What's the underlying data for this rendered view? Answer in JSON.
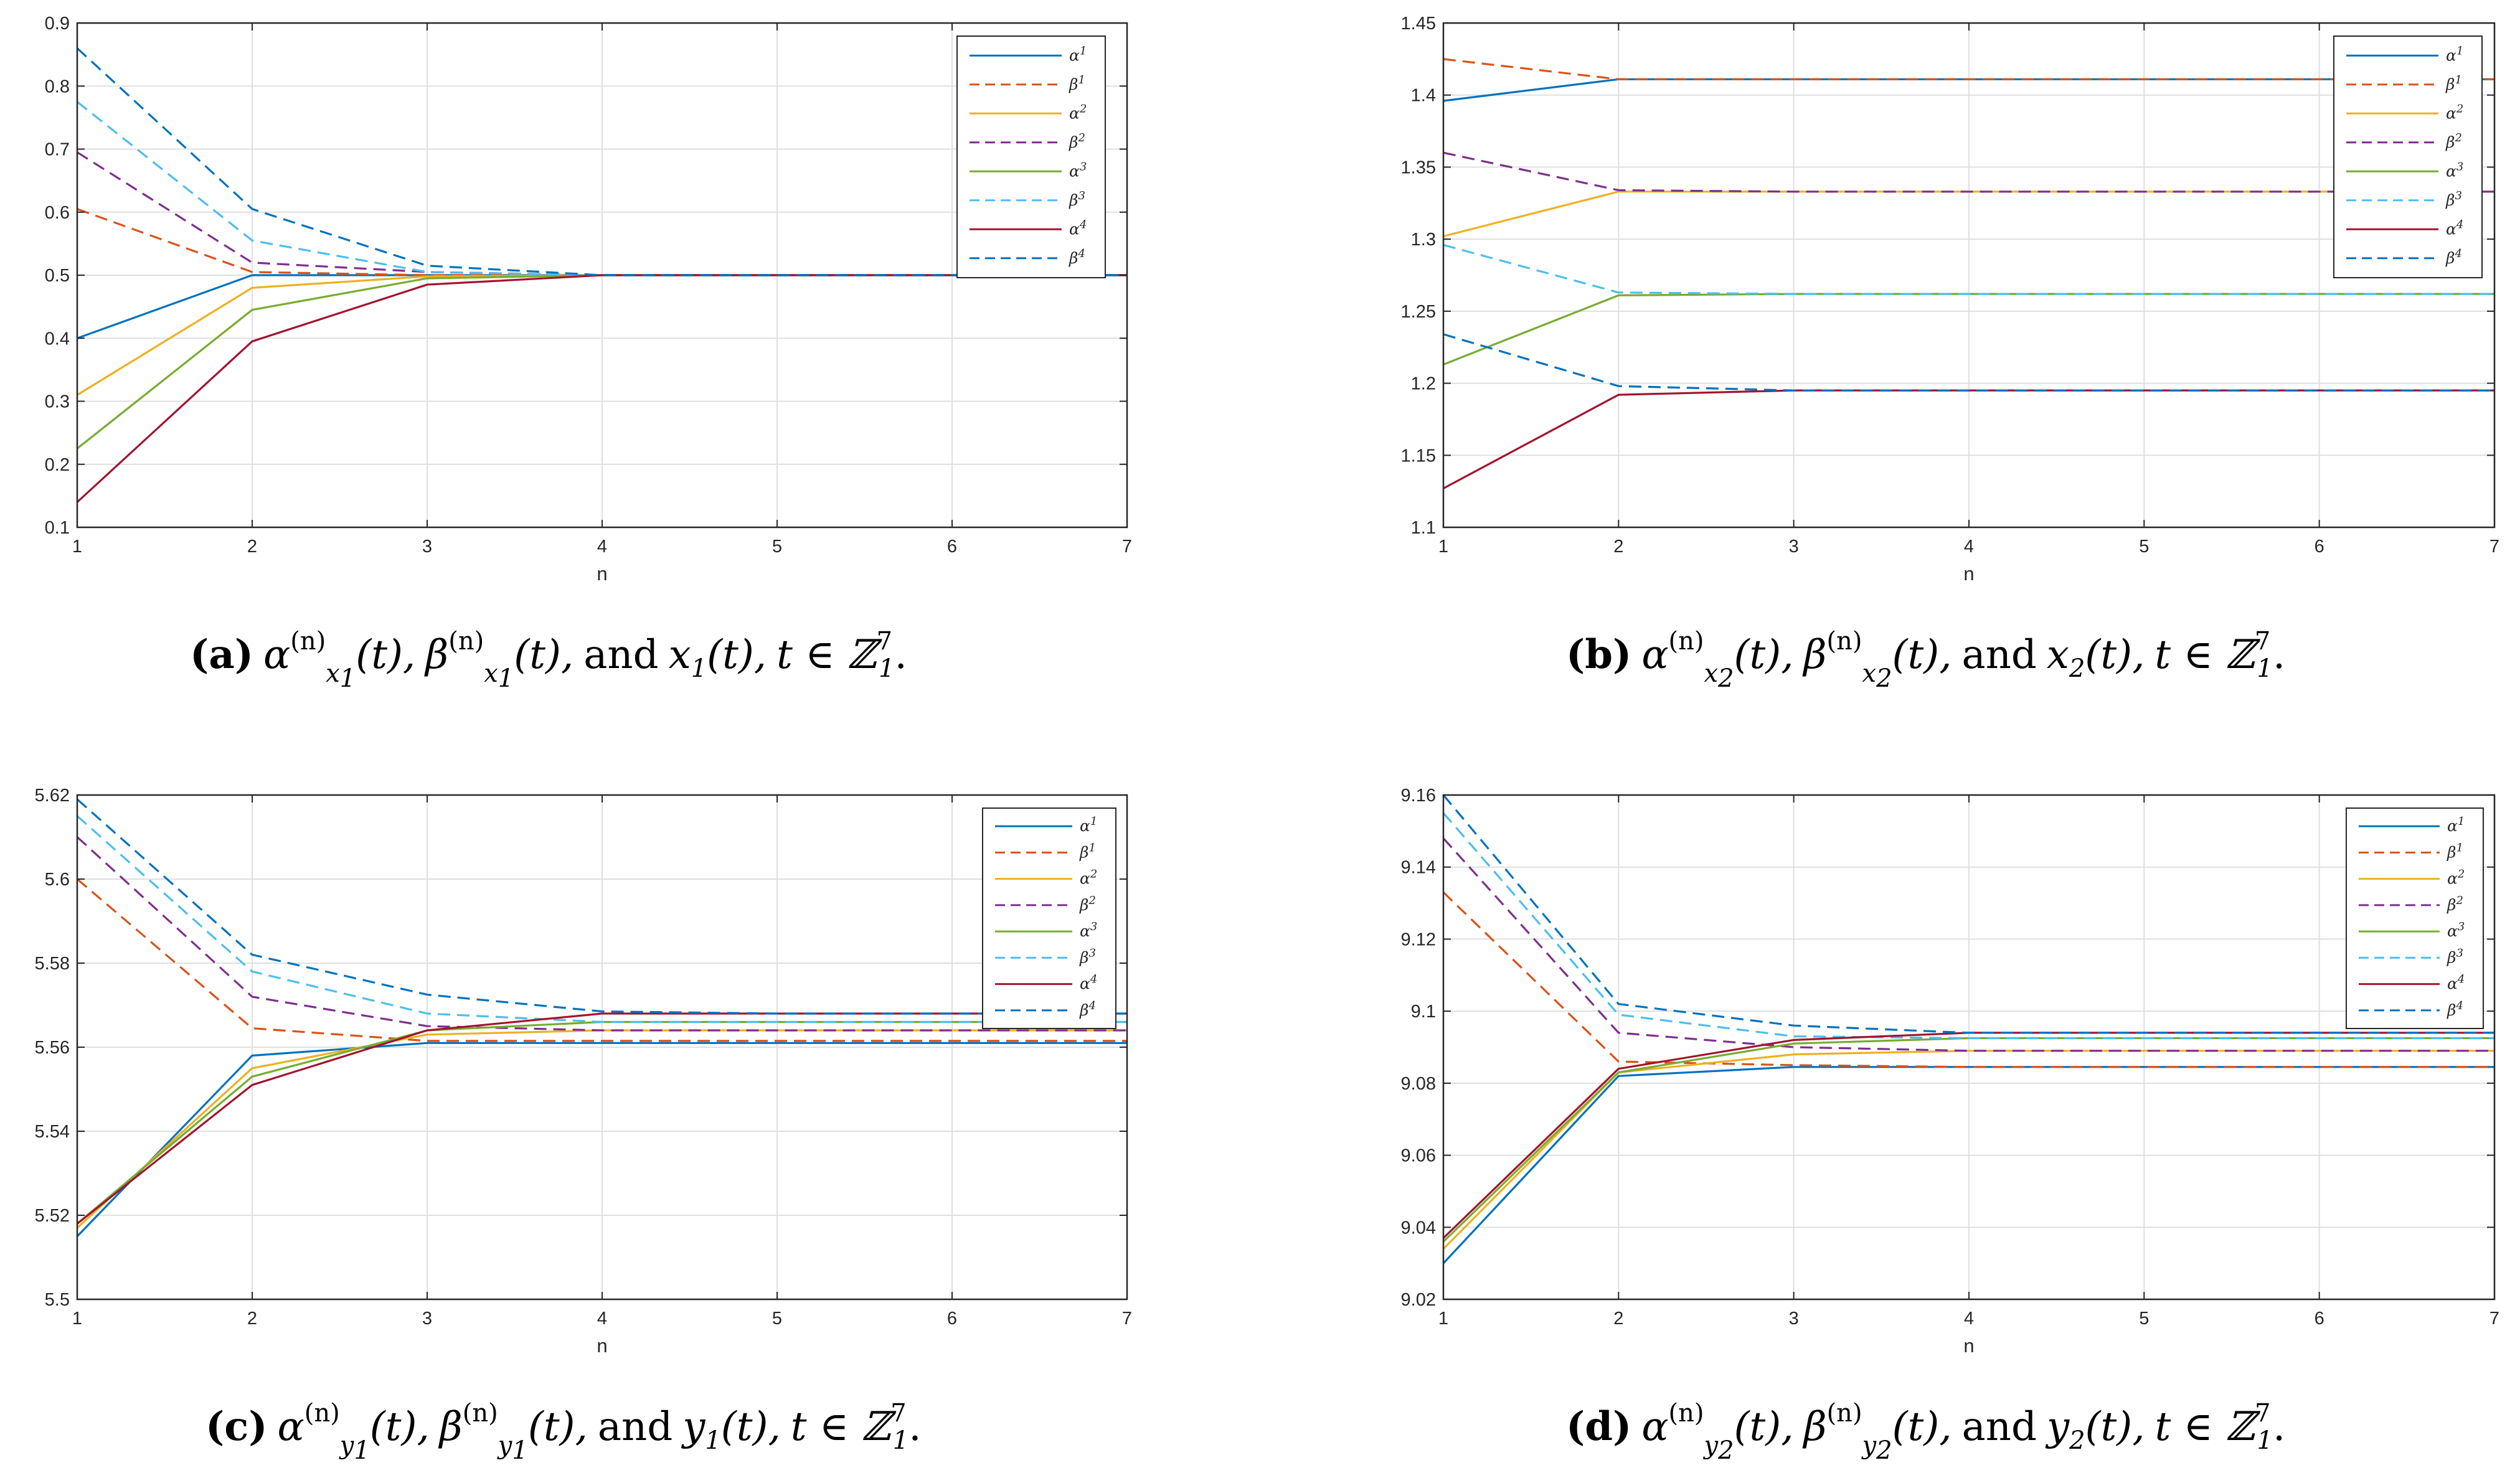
{
  "series_style": [
    {
      "name": "α1",
      "color": "#0072BD",
      "dashed": false
    },
    {
      "name": "β1",
      "color": "#D95319",
      "dashed": true
    },
    {
      "name": "α2",
      "color": "#EDB120",
      "dashed": false
    },
    {
      "name": "β2",
      "color": "#7E2F8E",
      "dashed": true
    },
    {
      "name": "α3",
      "color": "#77AC30",
      "dashed": false
    },
    {
      "name": "β3",
      "color": "#4DBEEE",
      "dashed": true
    },
    {
      "name": "α4",
      "color": "#A2142F",
      "dashed": false
    },
    {
      "name": "β4",
      "color": "#0072BD",
      "dashed": true
    }
  ],
  "legend": {
    "labels": [
      {
        "base": "α",
        "sup": "1"
      },
      {
        "base": "β",
        "sup": "1"
      },
      {
        "base": "α",
        "sup": "2"
      },
      {
        "base": "β",
        "sup": "2"
      },
      {
        "base": "α",
        "sup": "3"
      },
      {
        "base": "β",
        "sup": "3"
      },
      {
        "base": "α",
        "sup": "4"
      },
      {
        "base": "β",
        "sup": "4"
      }
    ]
  },
  "chart_data": [
    {
      "type": "line",
      "xlabel": "n",
      "legend_position": "top-right",
      "x": [
        1,
        2,
        3,
        4,
        5,
        6,
        7
      ],
      "xlim": [
        1,
        7
      ],
      "ylim": [
        0.1,
        0.9
      ],
      "yticks": [
        "0.1",
        "0.2",
        "0.3",
        "0.4",
        "0.5",
        "0.6",
        "0.7",
        "0.8",
        "0.9"
      ],
      "series": [
        {
          "name": "α1",
          "values": [
            0.4,
            0.5,
            0.5,
            0.5,
            0.5,
            0.5,
            0.5
          ]
        },
        {
          "name": "β1",
          "values": [
            0.605,
            0.505,
            0.5,
            0.5,
            0.5,
            0.5,
            0.5
          ]
        },
        {
          "name": "α2",
          "values": [
            0.31,
            0.48,
            0.498,
            0.5,
            0.5,
            0.5,
            0.5
          ]
        },
        {
          "name": "β2",
          "values": [
            0.695,
            0.52,
            0.505,
            0.5,
            0.5,
            0.5,
            0.5
          ]
        },
        {
          "name": "α3",
          "values": [
            0.225,
            0.445,
            0.495,
            0.5,
            0.5,
            0.5,
            0.5
          ]
        },
        {
          "name": "β3",
          "values": [
            0.775,
            0.555,
            0.505,
            0.5,
            0.5,
            0.5,
            0.5
          ]
        },
        {
          "name": "α4",
          "values": [
            0.14,
            0.395,
            0.485,
            0.5,
            0.5,
            0.5,
            0.5
          ]
        },
        {
          "name": "β4",
          "values": [
            0.86,
            0.605,
            0.515,
            0.5,
            0.5,
            0.5,
            0.5
          ]
        }
      ]
    },
    {
      "type": "line",
      "xlabel": "n",
      "legend_position": "top-right",
      "x": [
        1,
        2,
        3,
        4,
        5,
        6,
        7
      ],
      "xlim": [
        1,
        7
      ],
      "ylim": [
        1.1,
        1.45
      ],
      "yticks": [
        "1.1",
        "1.15",
        "1.2",
        "1.25",
        "1.3",
        "1.35",
        "1.4",
        "1.45"
      ],
      "series": [
        {
          "name": "α1",
          "values": [
            1.396,
            1.411,
            1.411,
            1.411,
            1.411,
            1.411,
            1.411
          ]
        },
        {
          "name": "β1",
          "values": [
            1.425,
            1.411,
            1.411,
            1.411,
            1.411,
            1.411,
            1.411
          ]
        },
        {
          "name": "α2",
          "values": [
            1.302,
            1.333,
            1.333,
            1.333,
            1.333,
            1.333,
            1.333
          ]
        },
        {
          "name": "β2",
          "values": [
            1.36,
            1.334,
            1.333,
            1.333,
            1.333,
            1.333,
            1.333
          ]
        },
        {
          "name": "α3",
          "values": [
            1.213,
            1.261,
            1.262,
            1.262,
            1.262,
            1.262,
            1.262
          ]
        },
        {
          "name": "β3",
          "values": [
            1.296,
            1.263,
            1.262,
            1.262,
            1.262,
            1.262,
            1.262
          ]
        },
        {
          "name": "α4",
          "values": [
            1.127,
            1.192,
            1.195,
            1.195,
            1.195,
            1.195,
            1.195
          ]
        },
        {
          "name": "β4",
          "values": [
            1.234,
            1.198,
            1.195,
            1.195,
            1.195,
            1.195,
            1.195
          ]
        }
      ]
    },
    {
      "type": "line",
      "xlabel": "n",
      "legend_position": "top-right",
      "x": [
        1,
        2,
        3,
        4,
        5,
        6,
        7
      ],
      "xlim": [
        1,
        7
      ],
      "ylim": [
        5.5,
        5.62
      ],
      "yticks": [
        "5.5",
        "5.52",
        "5.54",
        "5.56",
        "5.58",
        "5.6",
        "5.62"
      ],
      "series": [
        {
          "name": "α1",
          "values": [
            5.515,
            5.558,
            5.561,
            5.561,
            5.561,
            5.561,
            5.561
          ]
        },
        {
          "name": "β1",
          "values": [
            5.6,
            5.5645,
            5.5615,
            5.5615,
            5.5615,
            5.5615,
            5.5615
          ]
        },
        {
          "name": "α2",
          "values": [
            5.517,
            5.555,
            5.563,
            5.564,
            5.564,
            5.564,
            5.564
          ]
        },
        {
          "name": "β2",
          "values": [
            5.61,
            5.572,
            5.565,
            5.564,
            5.564,
            5.564,
            5.564
          ]
        },
        {
          "name": "α3",
          "values": [
            5.518,
            5.553,
            5.564,
            5.566,
            5.566,
            5.566,
            5.566
          ]
        },
        {
          "name": "β3",
          "values": [
            5.615,
            5.578,
            5.568,
            5.566,
            5.566,
            5.566,
            5.566
          ]
        },
        {
          "name": "α4",
          "values": [
            5.518,
            5.551,
            5.564,
            5.568,
            5.568,
            5.568,
            5.568
          ]
        },
        {
          "name": "β4",
          "values": [
            5.619,
            5.582,
            5.5725,
            5.5685,
            5.568,
            5.568,
            5.568
          ]
        }
      ]
    },
    {
      "type": "line",
      "xlabel": "n",
      "legend_position": "top-right",
      "x": [
        1,
        2,
        3,
        4,
        5,
        6,
        7
      ],
      "xlim": [
        1,
        7
      ],
      "ylim": [
        9.02,
        9.16
      ],
      "yticks": [
        "9.02",
        "9.04",
        "9.06",
        "9.08",
        "9.1",
        "9.12",
        "9.14",
        "9.16"
      ],
      "series": [
        {
          "name": "α1",
          "values": [
            9.03,
            9.082,
            9.0845,
            9.0845,
            9.0845,
            9.0845,
            9.0845
          ]
        },
        {
          "name": "β1",
          "values": [
            9.133,
            9.086,
            9.085,
            9.0845,
            9.0845,
            9.0845,
            9.0845
          ]
        },
        {
          "name": "α2",
          "values": [
            9.034,
            9.083,
            9.088,
            9.089,
            9.089,
            9.089,
            9.089
          ]
        },
        {
          "name": "β2",
          "values": [
            9.148,
            9.094,
            9.09,
            9.089,
            9.089,
            9.089,
            9.089
          ]
        },
        {
          "name": "α3",
          "values": [
            9.036,
            9.083,
            9.091,
            9.0925,
            9.0925,
            9.0925,
            9.0925
          ]
        },
        {
          "name": "β3",
          "values": [
            9.155,
            9.099,
            9.093,
            9.0925,
            9.0925,
            9.0925,
            9.0925
          ]
        },
        {
          "name": "α4",
          "values": [
            9.037,
            9.084,
            9.092,
            9.094,
            9.094,
            9.094,
            9.094
          ]
        },
        {
          "name": "β4",
          "values": [
            9.16,
            9.102,
            9.096,
            9.094,
            9.094,
            9.094,
            9.094
          ]
        }
      ]
    }
  ],
  "captions": [
    {
      "label": "(a)",
      "alpha": "α",
      "beta": "β",
      "subsym": "x",
      "subidx": "1",
      "sup": "(n)",
      "arg": "(t),",
      "and_text": "and",
      "var": "x",
      "var_idx": "1",
      "var_arg": "(t),",
      "domain_pre": "t ∈ ℤ",
      "domain_sup": "7",
      "domain_sub": "1",
      "domain_end": "."
    },
    {
      "label": "(b)",
      "alpha": "α",
      "beta": "β",
      "subsym": "x",
      "subidx": "2",
      "sup": "(n)",
      "arg": "(t),",
      "and_text": "and",
      "var": "x",
      "var_idx": "2",
      "var_arg": "(t),",
      "domain_pre": "t ∈ ℤ",
      "domain_sup": "7",
      "domain_sub": "1",
      "domain_end": "."
    },
    {
      "label": "(c)",
      "alpha": "α",
      "beta": "β",
      "subsym": "y",
      "subidx": "1",
      "sup": "(n)",
      "arg": "(t),",
      "and_text": "and",
      "var": "y",
      "var_idx": "1",
      "var_arg": "(t),",
      "domain_pre": "t ∈ ℤ",
      "domain_sup": "7",
      "domain_sub": "1",
      "domain_end": "."
    },
    {
      "label": "(d)",
      "alpha": "α",
      "beta": "β",
      "subsym": "y",
      "subidx": "2",
      "sup": "(n)",
      "arg": "(t),",
      "and_text": "and",
      "var": "y",
      "var_idx": "2",
      "var_arg": "(t),",
      "domain_pre": "t ∈ ℤ",
      "domain_sup": "7",
      "domain_sub": "1",
      "domain_end": "."
    }
  ]
}
